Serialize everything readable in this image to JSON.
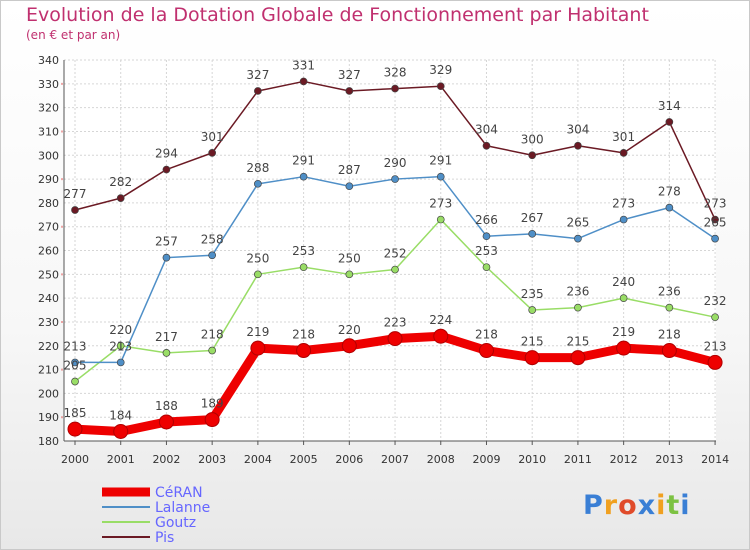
{
  "title": "Evolution de la Dotation Globale de Fonctionnement par Habitant",
  "subtitle": "(en € et par an)",
  "logo_text": "Proxiti",
  "chart_data": {
    "type": "line",
    "title": "Evolution de la Dotation Globale de Fonctionnement par Habitant",
    "subtitle": "(en € et par an)",
    "x": [
      "2000",
      "2001",
      "2002",
      "2003",
      "2004",
      "2005",
      "2006",
      "2007",
      "2008",
      "2009",
      "2010",
      "2011",
      "2012",
      "2013",
      "2014"
    ],
    "ylim": [
      180,
      340
    ],
    "yticks": [
      180,
      190,
      200,
      210,
      220,
      230,
      240,
      250,
      260,
      270,
      280,
      290,
      300,
      310,
      320,
      330,
      340
    ],
    "grid": true,
    "legend_position": "bottom-left",
    "series": [
      {
        "name": "CéRAN",
        "color": "#ee0000",
        "values": [
          185,
          184,
          188,
          189,
          219,
          218,
          220,
          223,
          224,
          218,
          215,
          215,
          219,
          218,
          213
        ],
        "labels": [
          "185",
          "184",
          "188",
          "189",
          "219",
          "218",
          "220",
          "223",
          "224",
          "218",
          "215",
          "215",
          "219",
          "218",
          "213"
        ]
      },
      {
        "name": "Lalanne",
        "color": "#4f8fc7",
        "values": [
          213,
          213,
          257,
          258,
          288,
          291,
          287,
          290,
          291,
          266,
          267,
          265,
          273,
          278,
          265
        ],
        "labels": [
          "213",
          "213",
          "257",
          "258",
          "288",
          "291",
          "287",
          "290",
          "291",
          "266",
          "267",
          "265",
          "273",
          "278",
          "265"
        ]
      },
      {
        "name": "Goutz",
        "color": "#99dd66",
        "values": [
          205,
          220,
          217,
          218,
          250,
          253,
          250,
          252,
          273,
          253,
          235,
          236,
          240,
          236,
          232
        ],
        "labels": [
          "205",
          "220",
          "217",
          "218",
          "250",
          "253",
          "250",
          "252",
          "273",
          "253",
          "235",
          "236",
          "240",
          "236",
          "232"
        ]
      },
      {
        "name": "Pis",
        "color": "#6b1a24",
        "values": [
          277,
          282,
          294,
          301,
          327,
          331,
          327,
          328,
          329,
          304,
          300,
          304,
          301,
          314,
          273
        ],
        "labels": [
          "277",
          "282",
          "294",
          "301",
          "327",
          "331",
          "327",
          "328",
          "329",
          "304",
          "300",
          "304",
          "301",
          "314",
          "273"
        ]
      }
    ]
  }
}
